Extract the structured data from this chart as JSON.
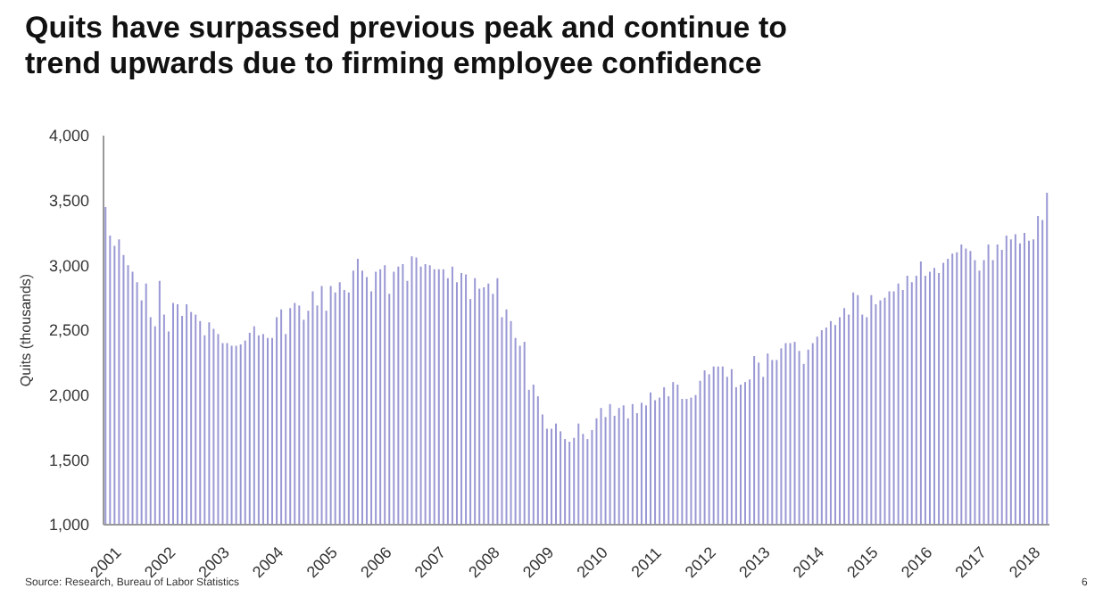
{
  "chart_data": {
    "type": "bar",
    "title": "Quits have surpassed previous peak and continue to trend upwards due to firming employee confidence",
    "ylabel": "Quits (thousands)",
    "color": "#9a98d4",
    "ylim": [
      1000,
      4000
    ],
    "yticks": [
      {
        "value": 1000,
        "label": "1,000"
      },
      {
        "value": 1500,
        "label": "1,500"
      },
      {
        "value": 2000,
        "label": "2,000"
      },
      {
        "value": 2500,
        "label": "2,500"
      },
      {
        "value": 3000,
        "label": "3,000"
      },
      {
        "value": 3500,
        "label": "3,500"
      },
      {
        "value": 4000,
        "label": "4,000"
      }
    ],
    "grid": false,
    "legend": false,
    "categories": [
      "2001",
      null,
      null,
      null,
      null,
      null,
      null,
      null,
      null,
      null,
      null,
      null,
      "2002",
      null,
      null,
      null,
      null,
      null,
      null,
      null,
      null,
      null,
      null,
      null,
      "2003",
      null,
      null,
      null,
      null,
      null,
      null,
      null,
      null,
      null,
      null,
      null,
      "2004",
      null,
      null,
      null,
      null,
      null,
      null,
      null,
      null,
      null,
      null,
      null,
      "2005",
      null,
      null,
      null,
      null,
      null,
      null,
      null,
      null,
      null,
      null,
      null,
      "2006",
      null,
      null,
      null,
      null,
      null,
      null,
      null,
      null,
      null,
      null,
      null,
      "2007",
      null,
      null,
      null,
      null,
      null,
      null,
      null,
      null,
      null,
      null,
      null,
      "2008",
      null,
      null,
      null,
      null,
      null,
      null,
      null,
      null,
      null,
      null,
      null,
      "2009",
      null,
      null,
      null,
      null,
      null,
      null,
      null,
      null,
      null,
      null,
      null,
      "2010",
      null,
      null,
      null,
      null,
      null,
      null,
      null,
      null,
      null,
      null,
      null,
      "2011",
      null,
      null,
      null,
      null,
      null,
      null,
      null,
      null,
      null,
      null,
      null,
      "2012",
      null,
      null,
      null,
      null,
      null,
      null,
      null,
      null,
      null,
      null,
      null,
      "2013",
      null,
      null,
      null,
      null,
      null,
      null,
      null,
      null,
      null,
      null,
      null,
      "2014",
      null,
      null,
      null,
      null,
      null,
      null,
      null,
      null,
      null,
      null,
      null,
      "2015",
      null,
      null,
      null,
      null,
      null,
      null,
      null,
      null,
      null,
      null,
      null,
      "2016",
      null,
      null,
      null,
      null,
      null,
      null,
      null,
      null,
      null,
      null,
      null,
      "2017",
      null,
      null,
      null,
      null,
      null,
      null,
      null,
      null,
      null,
      null,
      null,
      "2018",
      null,
      null,
      null,
      null,
      null
    ],
    "values": [
      3450,
      3230,
      3150,
      3200,
      3080,
      3000,
      2950,
      2870,
      2730,
      2860,
      2600,
      2530,
      2880,
      2620,
      2490,
      2710,
      2700,
      2610,
      2700,
      2640,
      2620,
      2570,
      2460,
      2560,
      2510,
      2470,
      2400,
      2400,
      2380,
      2380,
      2390,
      2420,
      2480,
      2530,
      2460,
      2470,
      2440,
      2440,
      2600,
      2660,
      2470,
      2670,
      2710,
      2690,
      2580,
      2650,
      2800,
      2690,
      2840,
      2650,
      2840,
      2790,
      2870,
      2810,
      2790,
      2960,
      3050,
      2960,
      2910,
      2800,
      2950,
      2970,
      3000,
      2780,
      2950,
      2990,
      3010,
      2880,
      3070,
      3060,
      2990,
      3010,
      3000,
      2970,
      2970,
      2970,
      2900,
      2990,
      2870,
      2940,
      2930,
      2740,
      2900,
      2820,
      2830,
      2860,
      2780,
      2900,
      2600,
      2660,
      2570,
      2440,
      2380,
      2410,
      2040,
      2080,
      1990,
      1850,
      1740,
      1740,
      1780,
      1720,
      1660,
      1640,
      1670,
      1780,
      1700,
      1660,
      1730,
      1820,
      1900,
      1830,
      1930,
      1840,
      1900,
      1920,
      1820,
      1930,
      1860,
      1940,
      1920,
      2020,
      1960,
      1980,
      2060,
      1990,
      2100,
      2080,
      1970,
      1970,
      1980,
      2000,
      2110,
      2190,
      2160,
      2220,
      2220,
      2220,
      2140,
      2200,
      2060,
      2080,
      2100,
      2120,
      2300,
      2250,
      2140,
      2320,
      2270,
      2270,
      2360,
      2400,
      2400,
      2410,
      2340,
      2240,
      2350,
      2400,
      2450,
      2500,
      2520,
      2570,
      2540,
      2600,
      2670,
      2620,
      2790,
      2770,
      2620,
      2600,
      2770,
      2700,
      2730,
      2750,
      2800,
      2800,
      2860,
      2810,
      2920,
      2870,
      2920,
      3030,
      2920,
      2950,
      2980,
      2940,
      3020,
      3050,
      3090,
      3100,
      3160,
      3130,
      3110,
      3040,
      2960,
      3040,
      3160,
      3040,
      3160,
      3120,
      3230,
      3200,
      3240,
      3170,
      3250,
      3190,
      3200,
      3380,
      3350,
      3560
    ],
    "annotations": [
      "Source: Research, Bureau of Labor Statistics",
      "6"
    ]
  }
}
